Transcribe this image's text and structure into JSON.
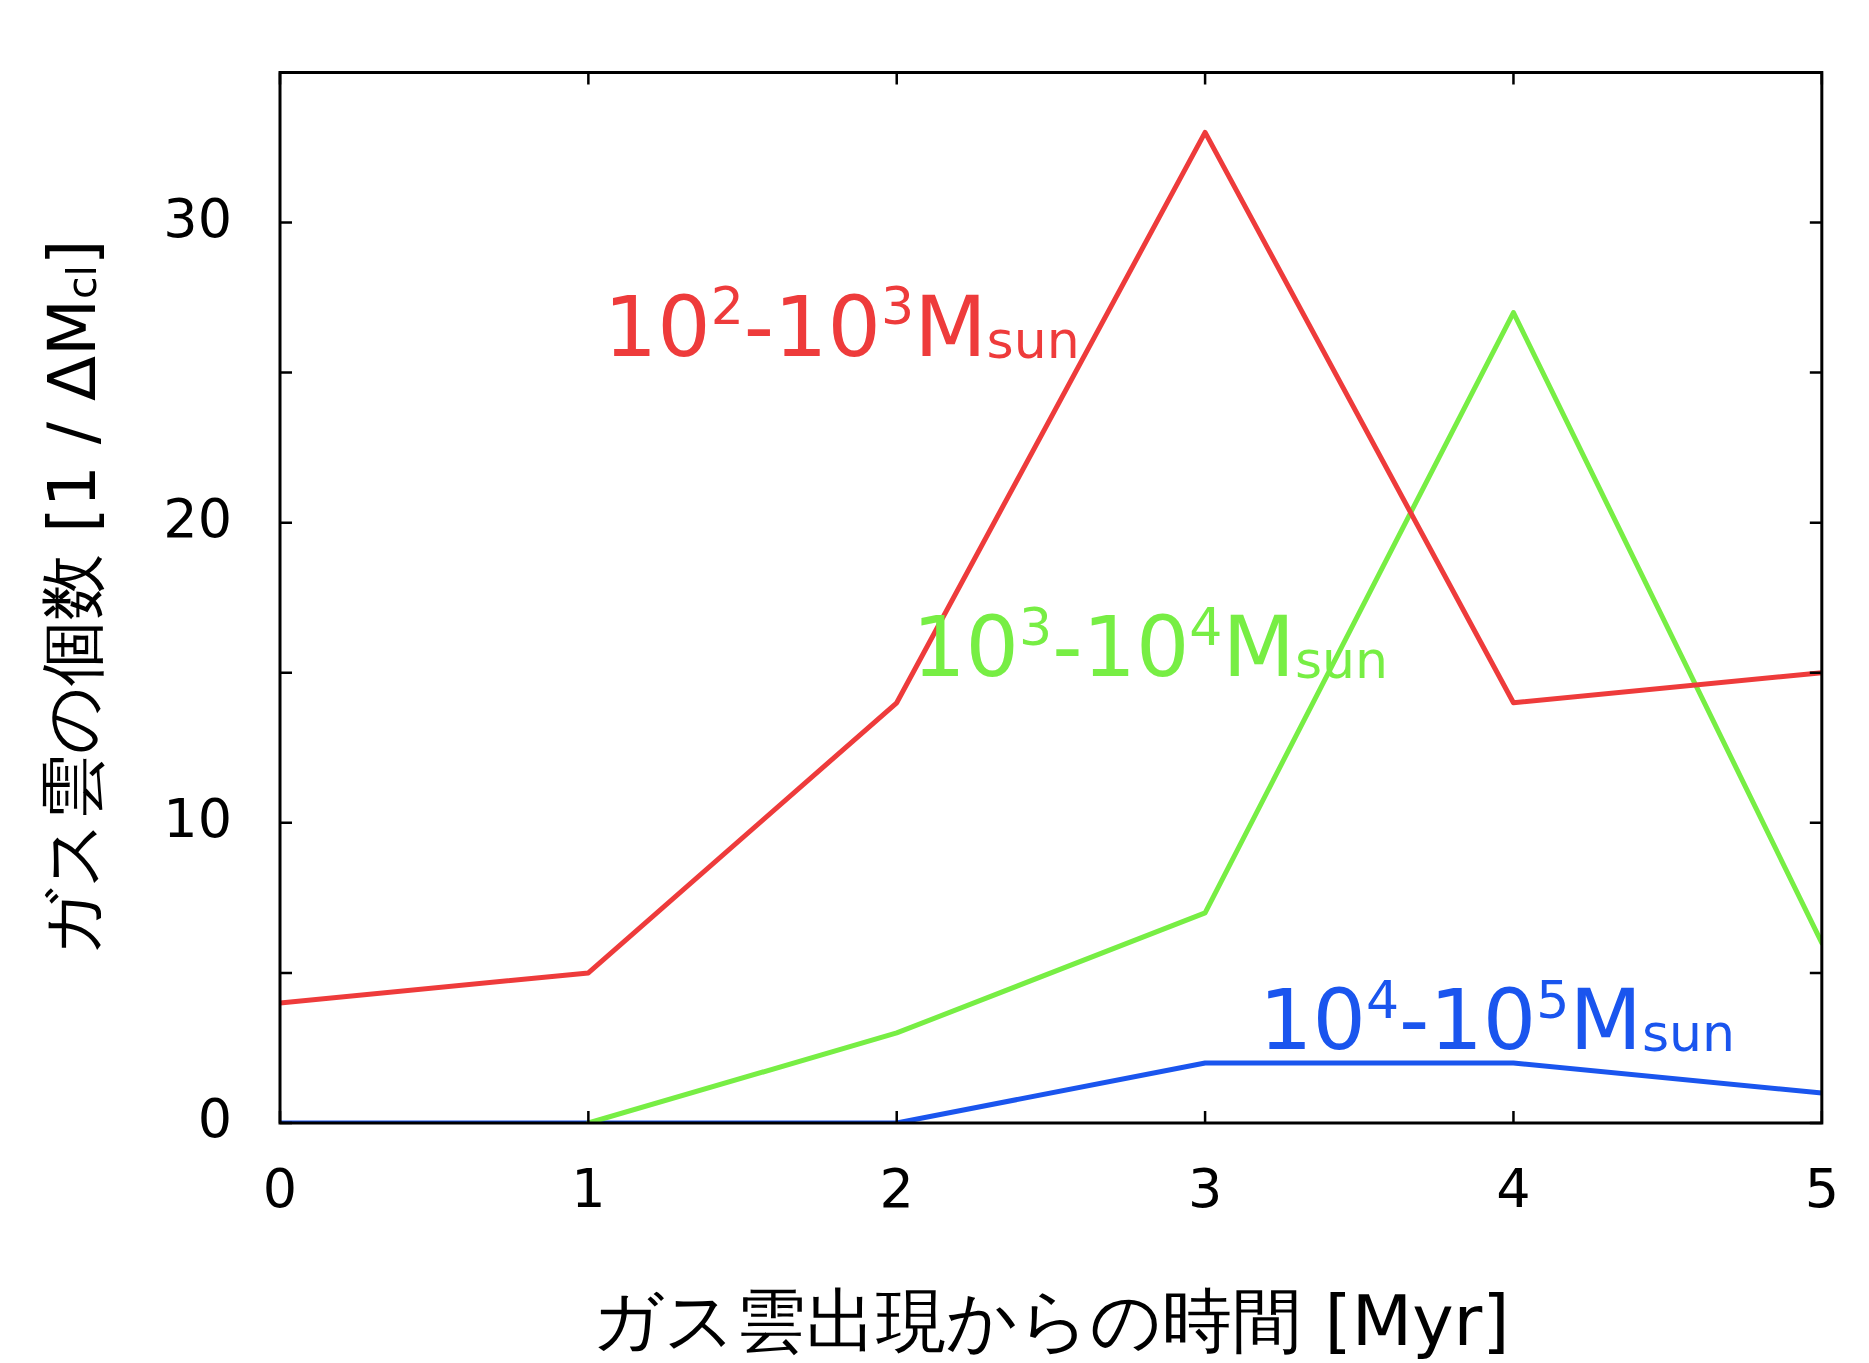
{
  "chart_data": {
    "type": "line",
    "xlabel": "ガス雲出現からの時間 [Myr]",
    "ylabel": "ガス雲の個数 [1 / ΔM$_{cl}$]",
    "x": [
      0,
      1,
      2,
      3,
      4,
      5
    ],
    "xlim": [
      0,
      5
    ],
    "xticks": [
      0,
      1,
      2,
      3,
      4,
      5
    ],
    "ylim": [
      0,
      35
    ],
    "yticks": [
      0,
      {
        "value": 5,
        "label": null
      },
      10,
      {
        "value": 15,
        "label": null
      },
      20,
      {
        "value": 25,
        "label": null
      },
      30
    ],
    "grid": false,
    "legend": false,
    "marker": "none",
    "line_style": "solid",
    "series": [
      {
        "name": "10$^{2}$-10$^{3}$M$_{sun}$",
        "color": "#ee3b3b",
        "values": [
          4,
          5,
          14,
          33,
          14,
          15
        ]
      },
      {
        "name": "10$^{3}$-10$^{4}$M$_{sun}$",
        "color": "#77ee44",
        "values": [
          null,
          0,
          3,
          7,
          27,
          6
        ]
      },
      {
        "name": "10$^{4}$-10$^{5}$M$_{sun}$",
        "color": "#1a55ee",
        "values": [
          0,
          0,
          0,
          2,
          2,
          1
        ]
      }
    ]
  }
}
